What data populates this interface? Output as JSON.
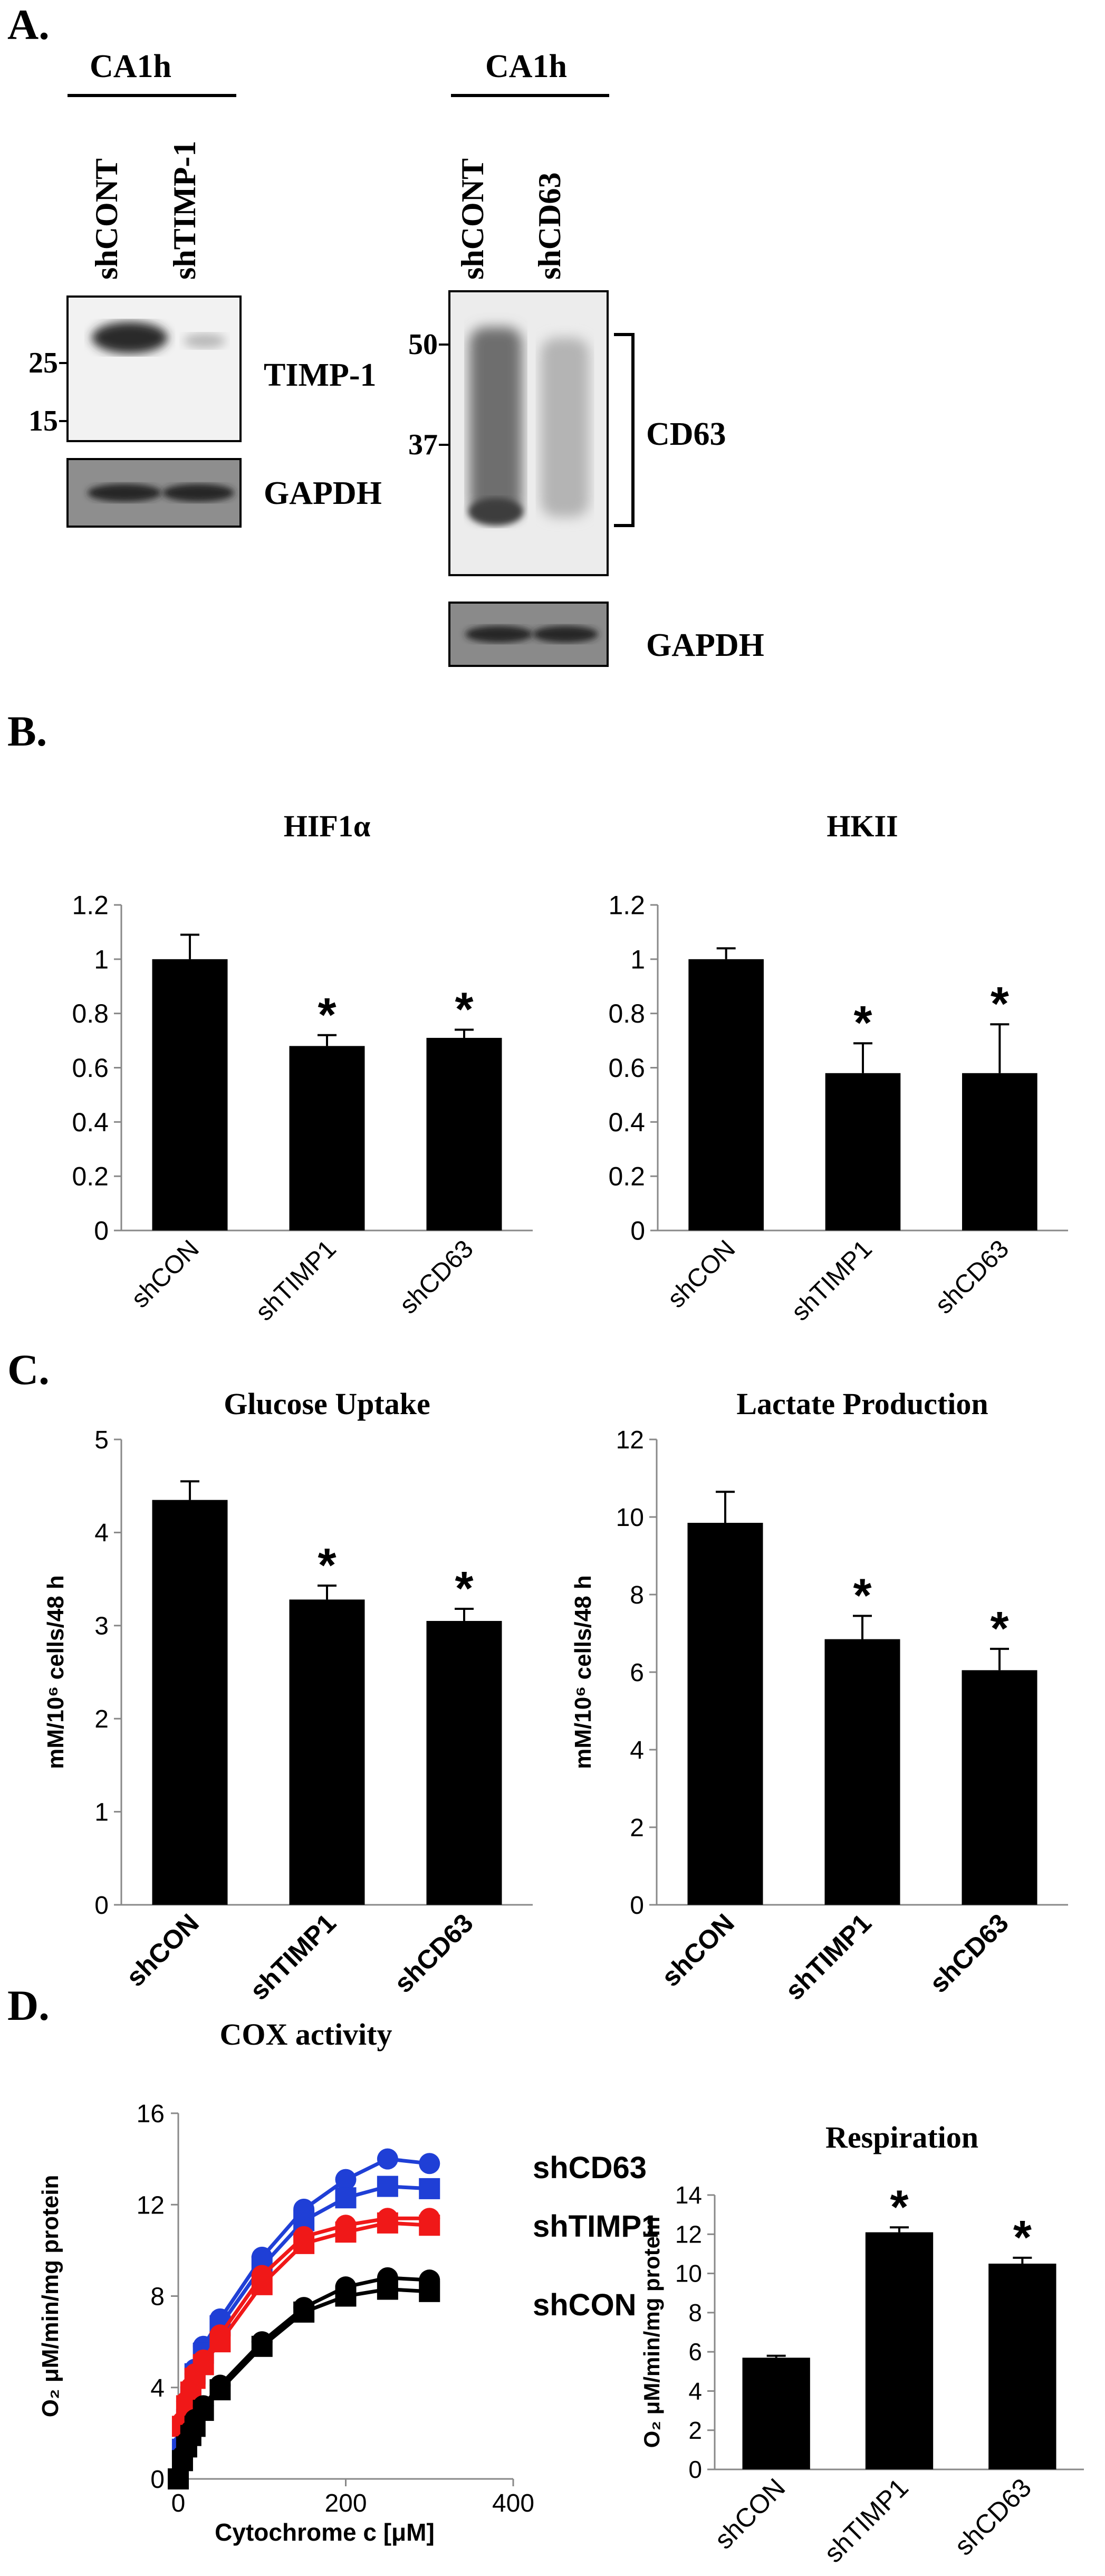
{
  "panels": {
    "a": "A.",
    "b": "B.",
    "c": "C.",
    "d": "D."
  },
  "blot1": {
    "cell_line": "CA1h",
    "lanes": [
      "shCONT",
      "shTIMP-1"
    ],
    "markers": [
      "25",
      "15"
    ],
    "protein": "TIMP-1",
    "loading": "GAPDH"
  },
  "blot2": {
    "cell_line": "CA1h",
    "lanes": [
      "shCONT",
      "shCD63"
    ],
    "markers": [
      "50",
      "37"
    ],
    "protein": "CD63",
    "loading": "GAPDH"
  },
  "chart_data": [
    {
      "id": "hif",
      "type": "bar",
      "title": "HIF1α",
      "categories": [
        "shCON",
        "shTIMP1",
        "shCD63"
      ],
      "values": [
        1.0,
        0.68,
        0.71
      ],
      "errors": [
        0.09,
        0.04,
        0.03
      ],
      "significant": [
        false,
        true,
        true
      ],
      "sig_mark": "*",
      "ylim": [
        0,
        1.2
      ],
      "yticks": [
        "0",
        "0.2",
        "0.4",
        "0.6",
        "0.8",
        "1",
        "1.2"
      ],
      "ylabel": "",
      "xlabel": ""
    },
    {
      "id": "hk",
      "type": "bar",
      "title": "HKII",
      "categories": [
        "shCON",
        "shTIMP1",
        "shCD63"
      ],
      "values": [
        1.0,
        0.58,
        0.58
      ],
      "errors": [
        0.04,
        0.11,
        0.18
      ],
      "significant": [
        false,
        true,
        true
      ],
      "sig_mark": "*",
      "ylim": [
        0,
        1.2
      ],
      "yticks": [
        "0",
        "0.2",
        "0.4",
        "0.6",
        "0.8",
        "1",
        "1.2"
      ],
      "ylabel": "",
      "xlabel": ""
    },
    {
      "id": "glu",
      "type": "bar",
      "title": "Glucose Uptake",
      "categories": [
        "shCON",
        "shTIMP1",
        "shCD63"
      ],
      "values": [
        4.35,
        3.28,
        3.05
      ],
      "errors": [
        0.2,
        0.15,
        0.13
      ],
      "significant": [
        false,
        true,
        true
      ],
      "sig_mark": "*",
      "ylim": [
        0,
        5
      ],
      "yticks": [
        "0",
        "1",
        "2",
        "3",
        "4",
        "5"
      ],
      "ylabel": "mM/10⁶ cells/48 h",
      "xlabel": ""
    },
    {
      "id": "lac",
      "type": "bar",
      "title": "Lactate Production",
      "categories": [
        "shCON",
        "shTIMP1",
        "shCD63"
      ],
      "values": [
        9.85,
        6.85,
        6.05
      ],
      "errors": [
        0.8,
        0.6,
        0.55
      ],
      "significant": [
        false,
        true,
        true
      ],
      "sig_mark": "*",
      "ylim": [
        0,
        12
      ],
      "yticks": [
        "0",
        "2",
        "4",
        "6",
        "8",
        "10",
        "12"
      ],
      "ylabel": "mM/10⁶ cells/48 h",
      "xlabel": ""
    },
    {
      "id": "cox",
      "type": "line",
      "title": "COX activity",
      "xlabel": "Cytochrome c [μM]",
      "ylabel": "O₂ μM/min/mg protein",
      "xlim": [
        0,
        400
      ],
      "ylim": [
        0,
        16
      ],
      "xticks": [
        "0",
        "200",
        "400"
      ],
      "yticks": [
        "0",
        "4",
        "8",
        "12",
        "16"
      ],
      "series": [
        {
          "name": "shCD63",
          "color": "#1f3fd6",
          "x": [
            0,
            5,
            10,
            15,
            20,
            30,
            50,
            100,
            150,
            200,
            250,
            300
          ],
          "y": [
            0,
            1.5,
            2.8,
            3.8,
            4.8,
            5.8,
            7.0,
            9.7,
            11.8,
            13.1,
            14.0,
            13.8
          ]
        },
        {
          "name": "",
          "color": "#1f3fd6",
          "x": [
            0,
            5,
            10,
            15,
            20,
            30,
            50,
            100,
            150,
            200,
            250,
            300
          ],
          "y": [
            0,
            1.3,
            2.6,
            3.6,
            4.6,
            5.5,
            6.7,
            9.3,
            11.3,
            12.3,
            12.8,
            12.7
          ]
        },
        {
          "name": "shTIMP1",
          "color": "#f01818",
          "x": [
            0,
            5,
            10,
            15,
            20,
            30,
            50,
            100,
            150,
            200,
            250,
            300
          ],
          "y": [
            0,
            2.5,
            3.4,
            4.0,
            4.6,
            5.2,
            6.3,
            8.9,
            10.6,
            11.1,
            11.4,
            11.4
          ]
        },
        {
          "name": "",
          "color": "#f01818",
          "x": [
            0,
            5,
            10,
            15,
            20,
            30,
            50,
            100,
            150,
            200,
            250,
            300
          ],
          "y": [
            0,
            2.3,
            3.2,
            3.8,
            4.4,
            5.0,
            6.0,
            8.5,
            10.3,
            10.8,
            11.2,
            11.1
          ]
        },
        {
          "name": "shCON",
          "color": "#000000",
          "x": [
            0,
            5,
            10,
            15,
            20,
            30,
            50,
            100,
            150,
            200,
            250,
            300
          ],
          "y": [
            0,
            1.0,
            1.6,
            2.1,
            2.6,
            3.2,
            4.1,
            6.0,
            7.5,
            8.4,
            8.8,
            8.7
          ]
        },
        {
          "name": "",
          "color": "#000000",
          "x": [
            0,
            5,
            10,
            15,
            20,
            30,
            50,
            100,
            150,
            200,
            250,
            300
          ],
          "y": [
            0,
            0.8,
            1.4,
            1.9,
            2.3,
            3.0,
            3.9,
            5.8,
            7.3,
            8.0,
            8.3,
            8.2
          ]
        }
      ]
    },
    {
      "id": "resp",
      "type": "bar",
      "title": "Respiration",
      "categories": [
        "shCON",
        "shTIMP1",
        "shCD63"
      ],
      "values": [
        5.7,
        12.1,
        10.5
      ],
      "errors": [
        0.1,
        0.25,
        0.3
      ],
      "significant": [
        false,
        true,
        true
      ],
      "sig_mark": "*",
      "ylim": [
        0,
        14
      ],
      "yticks": [
        "0",
        "2",
        "4",
        "6",
        "8",
        "10",
        "12",
        "14"
      ],
      "ylabel": "O₂ μM/min/mg protein",
      "xlabel": ""
    }
  ]
}
